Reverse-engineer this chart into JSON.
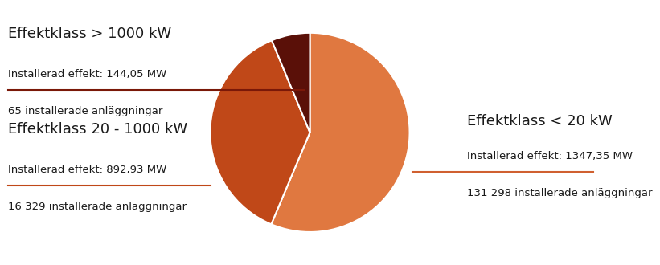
{
  "slices": [
    {
      "label": "Effektklass < 20 kW",
      "sub1": "Installerad effekt: 1347,35 MW",
      "sub2": "131 298 installerade anläggningar",
      "value": 56.34,
      "color": "#E07840",
      "line_color": "#D06030"
    },
    {
      "label": "Effektklass 20 - 1000 kW",
      "sub1": "Installerad effekt: 892,93 MW",
      "sub2": "16 329 installerade anläggningar",
      "value": 37.41,
      "color": "#C04818",
      "line_color": "#C04818"
    },
    {
      "label": "Effektklass > 1000 kW",
      "sub1": "Installerad effekt: 144,05 MW",
      "sub2": "65 installerade anläggningar",
      "value": 6.25,
      "color": "#5A1008",
      "line_color": "#7A1808"
    }
  ],
  "startangle": 90,
  "bg_color": "#ffffff",
  "text_color": "#1a1a1a",
  "wedge_linewidth": 1.5,
  "wedge_linecolor": "#ffffff",
  "label_fontsize": 13,
  "sub_fontsize": 9.5
}
